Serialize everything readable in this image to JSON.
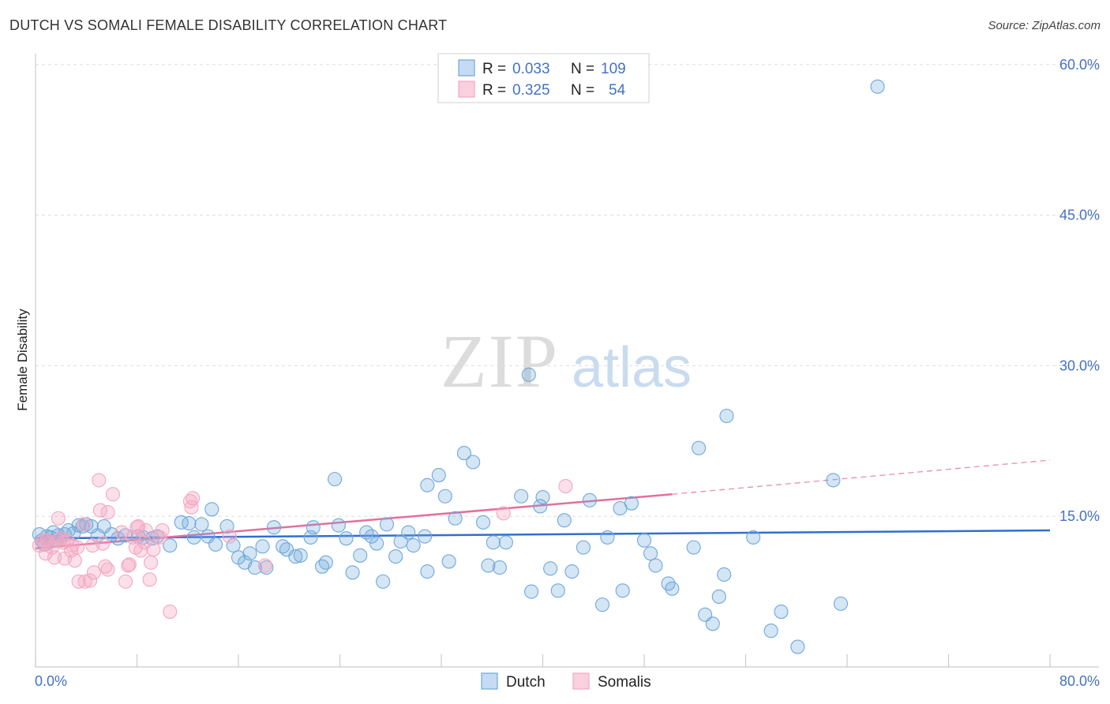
{
  "header": {
    "title": "DUTCH VS SOMALI FEMALE DISABILITY CORRELATION CHART",
    "source": "Source: ZipAtlas.com"
  },
  "watermark": {
    "zip": "ZIP",
    "atlas": "atlas"
  },
  "legend_top": {
    "rows": [
      {
        "r_label": "R =",
        "r_value": "0.033",
        "n_label": "N =",
        "n_value": "109",
        "color": "#6fa8dc"
      },
      {
        "r_label": "R =",
        "r_value": "0.325",
        "n_label": "N =",
        "n_value": "54",
        "color": "#f4a7c0"
      }
    ]
  },
  "legend_bottom": {
    "items": [
      {
        "label": "Dutch",
        "color": "#6fa8dc"
      },
      {
        "label": "Somalis",
        "color": "#f4a7c0"
      }
    ]
  },
  "chart_data": {
    "type": "scatter",
    "title": "DUTCH VS SOMALI FEMALE DISABILITY CORRELATION CHART",
    "xlabel": "",
    "ylabel": "Female Disability",
    "xlim": [
      0,
      80
    ],
    "ylim": [
      0,
      60
    ],
    "x_tick_labels": [
      "0.0%",
      "80.0%"
    ],
    "y_ticks": [
      15,
      30,
      45,
      60
    ],
    "y_tick_labels": [
      "15.0%",
      "30.0%",
      "45.0%",
      "60.0%"
    ],
    "grid": "horizontal dashed",
    "legend_position": "top-center",
    "series": [
      {
        "name": "Dutch",
        "color": "#6fa8dc",
        "trend": {
          "x": [
            0,
            80
          ],
          "y": [
            12.8,
            13.6
          ],
          "style": "solid"
        },
        "points": [
          [
            0.3,
            13.2
          ],
          [
            0.5,
            12.6
          ],
          [
            0.7,
            12.2
          ],
          [
            0.9,
            13.0
          ],
          [
            1.0,
            12.5
          ],
          [
            1.2,
            12.9
          ],
          [
            1.4,
            13.4
          ],
          [
            1.6,
            12.6
          ],
          [
            1.8,
            13.1
          ],
          [
            2.0,
            12.8
          ],
          [
            2.3,
            13.2
          ],
          [
            2.6,
            13.6
          ],
          [
            3.0,
            13.3
          ],
          [
            3.4,
            14.1
          ],
          [
            3.7,
            14.0
          ],
          [
            4.0,
            14.2
          ],
          [
            4.4,
            14.0
          ],
          [
            4.9,
            13.1
          ],
          [
            5.4,
            14.0
          ],
          [
            6.0,
            13.2
          ],
          [
            6.5,
            12.8
          ],
          [
            7.1,
            13.1
          ],
          [
            8.1,
            13.0
          ],
          [
            8.5,
            12.9
          ],
          [
            9.2,
            12.8
          ],
          [
            9.6,
            13.0
          ],
          [
            10.6,
            12.1
          ],
          [
            11.5,
            14.4
          ],
          [
            12.1,
            14.3
          ],
          [
            12.5,
            12.9
          ],
          [
            13.1,
            14.2
          ],
          [
            13.6,
            13.0
          ],
          [
            13.9,
            15.7
          ],
          [
            14.2,
            12.2
          ],
          [
            15.1,
            14.0
          ],
          [
            15.6,
            12.1
          ],
          [
            16.0,
            10.9
          ],
          [
            16.5,
            10.4
          ],
          [
            16.9,
            11.3
          ],
          [
            17.3,
            9.9
          ],
          [
            17.9,
            12.0
          ],
          [
            18.2,
            9.9
          ],
          [
            18.8,
            13.9
          ],
          [
            19.5,
            12.0
          ],
          [
            19.8,
            11.7
          ],
          [
            20.5,
            11.0
          ],
          [
            20.9,
            11.1
          ],
          [
            21.7,
            12.9
          ],
          [
            21.9,
            13.9
          ],
          [
            22.6,
            10.0
          ],
          [
            22.9,
            10.4
          ],
          [
            23.6,
            18.7
          ],
          [
            23.9,
            14.1
          ],
          [
            24.5,
            12.8
          ],
          [
            25.0,
            9.4
          ],
          [
            25.6,
            11.1
          ],
          [
            26.1,
            13.4
          ],
          [
            26.5,
            13.0
          ],
          [
            26.9,
            12.3
          ],
          [
            27.4,
            8.5
          ],
          [
            27.7,
            14.2
          ],
          [
            28.4,
            11.0
          ],
          [
            28.8,
            12.5
          ],
          [
            29.4,
            13.4
          ],
          [
            29.8,
            12.1
          ],
          [
            30.7,
            13.0
          ],
          [
            30.9,
            9.5
          ],
          [
            30.9,
            18.1
          ],
          [
            31.8,
            19.1
          ],
          [
            32.3,
            17.0
          ],
          [
            32.6,
            10.5
          ],
          [
            33.1,
            14.8
          ],
          [
            33.8,
            21.3
          ],
          [
            34.5,
            20.4
          ],
          [
            35.3,
            14.4
          ],
          [
            35.7,
            10.1
          ],
          [
            36.1,
            12.4
          ],
          [
            36.6,
            9.9
          ],
          [
            37.1,
            12.4
          ],
          [
            38.3,
            17.0
          ],
          [
            38.9,
            29.1
          ],
          [
            39.1,
            7.5
          ],
          [
            39.8,
            16.0
          ],
          [
            40.0,
            16.9
          ],
          [
            40.6,
            9.8
          ],
          [
            41.2,
            7.6
          ],
          [
            41.7,
            14.6
          ],
          [
            42.3,
            9.5
          ],
          [
            43.2,
            11.9
          ],
          [
            43.7,
            16.6
          ],
          [
            44.7,
            6.2
          ],
          [
            45.1,
            12.9
          ],
          [
            46.1,
            15.8
          ],
          [
            46.3,
            7.6
          ],
          [
            47.0,
            16.3
          ],
          [
            48.0,
            12.6
          ],
          [
            48.5,
            11.3
          ],
          [
            48.9,
            10.1
          ],
          [
            49.9,
            8.3
          ],
          [
            50.2,
            7.8
          ],
          [
            51.9,
            11.9
          ],
          [
            52.3,
            21.8
          ],
          [
            52.8,
            5.2
          ],
          [
            53.4,
            4.3
          ],
          [
            53.9,
            7.0
          ],
          [
            54.3,
            9.2
          ],
          [
            54.5,
            25.0
          ],
          [
            56.6,
            12.9
          ],
          [
            58.0,
            3.6
          ],
          [
            58.8,
            5.5
          ],
          [
            60.1,
            2.0
          ],
          [
            62.9,
            18.6
          ],
          [
            63.5,
            6.3
          ],
          [
            66.4,
            57.8
          ]
        ]
      },
      {
        "name": "Somalis",
        "color": "#f4a7c0",
        "trend": {
          "x": [
            0,
            50.2
          ],
          "y": [
            11.8,
            17.2
          ],
          "style": "solid"
        },
        "trend_extension": {
          "x": [
            50.2,
            80
          ],
          "y": [
            17.2,
            20.6
          ],
          "style": "dashed"
        },
        "points": [
          [
            0.3,
            12.1
          ],
          [
            0.6,
            12.6
          ],
          [
            0.8,
            11.3
          ],
          [
            1.0,
            12.3
          ],
          [
            1.3,
            11.9
          ],
          [
            1.5,
            10.9
          ],
          [
            1.7,
            12.6
          ],
          [
            1.8,
            14.8
          ],
          [
            2.0,
            12.8
          ],
          [
            2.3,
            10.8
          ],
          [
            2.5,
            12.6
          ],
          [
            2.8,
            11.6
          ],
          [
            2.9,
            12.1
          ],
          [
            3.1,
            10.6
          ],
          [
            3.3,
            11.9
          ],
          [
            3.4,
            8.5
          ],
          [
            3.8,
            14.2
          ],
          [
            3.9,
            8.5
          ],
          [
            4.3,
            8.6
          ],
          [
            4.5,
            12.1
          ],
          [
            4.6,
            9.4
          ],
          [
            5.0,
            18.6
          ],
          [
            5.1,
            15.6
          ],
          [
            5.3,
            12.3
          ],
          [
            5.5,
            10.0
          ],
          [
            5.7,
            15.4
          ],
          [
            5.7,
            9.7
          ],
          [
            6.1,
            17.2
          ],
          [
            6.8,
            13.4
          ],
          [
            7.1,
            8.5
          ],
          [
            7.3,
            10.1
          ],
          [
            7.4,
            10.2
          ],
          [
            7.7,
            12.9
          ],
          [
            7.9,
            11.9
          ],
          [
            8.0,
            13.9
          ],
          [
            8.1,
            14.0
          ],
          [
            8.3,
            11.6
          ],
          [
            8.6,
            12.4
          ],
          [
            8.7,
            13.6
          ],
          [
            9.0,
            8.7
          ],
          [
            9.1,
            10.4
          ],
          [
            9.3,
            11.7
          ],
          [
            9.8,
            12.9
          ],
          [
            10.0,
            13.6
          ],
          [
            10.6,
            5.5
          ],
          [
            12.2,
            16.5
          ],
          [
            12.3,
            15.9
          ],
          [
            12.4,
            16.8
          ],
          [
            15.3,
            13.0
          ],
          [
            18.1,
            10.1
          ],
          [
            36.9,
            15.3
          ],
          [
            41.8,
            18.0
          ],
          [
            0.9,
            12.6
          ],
          [
            2.2,
            12.4
          ]
        ]
      }
    ]
  }
}
